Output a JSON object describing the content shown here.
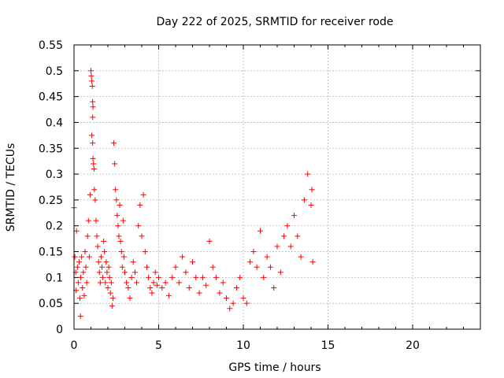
{
  "chart_data": {
    "type": "scatter",
    "title": "Day 222 of 2025, SRMTID for receiver rode",
    "xlabel": "GPS time / hours",
    "ylabel": "SRMTID / TECUs",
    "xlim": [
      0,
      24
    ],
    "ylim": [
      0,
      0.55
    ],
    "xticks": [
      0,
      5,
      10,
      15,
      20
    ],
    "xtick_labels": [
      "0",
      "5",
      "10",
      "15",
      "20"
    ],
    "yticks": [
      0,
      0.05,
      0.1,
      0.15,
      0.2,
      0.25,
      0.3,
      0.35,
      0.4,
      0.45,
      0.5,
      0.55
    ],
    "ytick_labels": [
      "0",
      "0.05",
      "0.1",
      "0.15",
      "0.2",
      "0.25",
      "0.3",
      "0.35",
      "0.4",
      "0.45",
      "0.5",
      "0.55"
    ],
    "grid": true,
    "marker": "+",
    "color": "#ff0000",
    "series": [
      {
        "name": "SRMTID",
        "points": [
          [
            0.0,
            0.235
          ],
          [
            0.05,
            0.14
          ],
          [
            0.1,
            0.11
          ],
          [
            0.12,
            0.075
          ],
          [
            0.15,
            0.19
          ],
          [
            0.2,
            0.12
          ],
          [
            0.25,
            0.09
          ],
          [
            0.3,
            0.13
          ],
          [
            0.35,
            0.06
          ],
          [
            0.38,
            0.025
          ],
          [
            0.4,
            0.1
          ],
          [
            0.45,
            0.14
          ],
          [
            0.5,
            0.08
          ],
          [
            0.55,
            0.11
          ],
          [
            0.6,
            0.065
          ],
          [
            0.65,
            0.15
          ],
          [
            0.7,
            0.12
          ],
          [
            0.75,
            0.09
          ],
          [
            0.8,
            0.18
          ],
          [
            0.85,
            0.21
          ],
          [
            0.9,
            0.14
          ],
          [
            0.95,
            0.26
          ],
          [
            1.0,
            0.5
          ],
          [
            1.02,
            0.49
          ],
          [
            1.05,
            0.48
          ],
          [
            1.08,
            0.47
          ],
          [
            1.1,
            0.44
          ],
          [
            1.12,
            0.43
          ],
          [
            1.1,
            0.41
          ],
          [
            1.05,
            0.375
          ],
          [
            1.1,
            0.36
          ],
          [
            1.12,
            0.33
          ],
          [
            1.15,
            0.32
          ],
          [
            1.18,
            0.31
          ],
          [
            1.2,
            0.27
          ],
          [
            1.25,
            0.25
          ],
          [
            1.3,
            0.21
          ],
          [
            1.35,
            0.18
          ],
          [
            1.4,
            0.16
          ],
          [
            1.45,
            0.13
          ],
          [
            1.5,
            0.11
          ],
          [
            1.55,
            0.09
          ],
          [
            1.6,
            0.14
          ],
          [
            1.65,
            0.12
          ],
          [
            1.7,
            0.1
          ],
          [
            1.75,
            0.17
          ],
          [
            1.8,
            0.15
          ],
          [
            1.85,
            0.09
          ],
          [
            1.9,
            0.13
          ],
          [
            1.95,
            0.11
          ],
          [
            2.0,
            0.08
          ],
          [
            2.05,
            0.12
          ],
          [
            2.1,
            0.1
          ],
          [
            2.15,
            0.07
          ],
          [
            2.2,
            0.09
          ],
          [
            2.25,
            0.045
          ],
          [
            2.3,
            0.06
          ],
          [
            2.35,
            0.36
          ],
          [
            2.4,
            0.32
          ],
          [
            2.45,
            0.27
          ],
          [
            2.5,
            0.25
          ],
          [
            2.55,
            0.22
          ],
          [
            2.6,
            0.2
          ],
          [
            2.65,
            0.18
          ],
          [
            2.7,
            0.24
          ],
          [
            2.75,
            0.17
          ],
          [
            2.8,
            0.15
          ],
          [
            2.85,
            0.12
          ],
          [
            2.9,
            0.21
          ],
          [
            2.95,
            0.14
          ],
          [
            3.0,
            0.11
          ],
          [
            3.1,
            0.09
          ],
          [
            3.2,
            0.08
          ],
          [
            3.3,
            0.06
          ],
          [
            3.4,
            0.1
          ],
          [
            3.5,
            0.13
          ],
          [
            3.6,
            0.11
          ],
          [
            3.7,
            0.09
          ],
          [
            3.8,
            0.2
          ],
          [
            3.9,
            0.24
          ],
          [
            4.0,
            0.18
          ],
          [
            4.1,
            0.26
          ],
          [
            4.2,
            0.15
          ],
          [
            4.3,
            0.12
          ],
          [
            4.4,
            0.1
          ],
          [
            4.5,
            0.08
          ],
          [
            4.6,
            0.07
          ],
          [
            4.7,
            0.09
          ],
          [
            4.8,
            0.11
          ],
          [
            4.9,
            0.085
          ],
          [
            5.0,
            0.1
          ],
          [
            5.2,
            0.08
          ],
          [
            5.4,
            0.09
          ],
          [
            5.6,
            0.065
          ],
          [
            5.8,
            0.1
          ],
          [
            6.0,
            0.12
          ],
          [
            6.2,
            0.09
          ],
          [
            6.4,
            0.14
          ],
          [
            6.6,
            0.11
          ],
          [
            6.8,
            0.08
          ],
          [
            7.0,
            0.13
          ],
          [
            7.2,
            0.1
          ],
          [
            7.4,
            0.07
          ],
          [
            7.6,
            0.1
          ],
          [
            7.8,
            0.085
          ],
          [
            8.0,
            0.17
          ],
          [
            8.2,
            0.12
          ],
          [
            8.4,
            0.1
          ],
          [
            8.6,
            0.07
          ],
          [
            8.8,
            0.09
          ],
          [
            9.0,
            0.06
          ],
          [
            9.2,
            0.04
          ],
          [
            9.4,
            0.05
          ],
          [
            9.6,
            0.08
          ],
          [
            9.8,
            0.1
          ],
          [
            10.0,
            0.06
          ],
          [
            10.2,
            0.05
          ],
          [
            10.4,
            0.13
          ],
          [
            10.6,
            0.15
          ],
          [
            10.8,
            0.12
          ],
          [
            11.0,
            0.19
          ],
          [
            11.2,
            0.1
          ],
          [
            11.4,
            0.14
          ],
          [
            11.6,
            0.12
          ],
          [
            11.8,
            0.08
          ],
          [
            12.0,
            0.16
          ],
          [
            12.2,
            0.11
          ],
          [
            12.4,
            0.18
          ],
          [
            12.6,
            0.2
          ],
          [
            12.8,
            0.16
          ],
          [
            13.0,
            0.22
          ],
          [
            13.2,
            0.18
          ],
          [
            13.4,
            0.14
          ],
          [
            13.6,
            0.25
          ],
          [
            13.8,
            0.3
          ],
          [
            14.0,
            0.24
          ],
          [
            14.05,
            0.27
          ],
          [
            14.1,
            0.13
          ]
        ]
      }
    ]
  }
}
